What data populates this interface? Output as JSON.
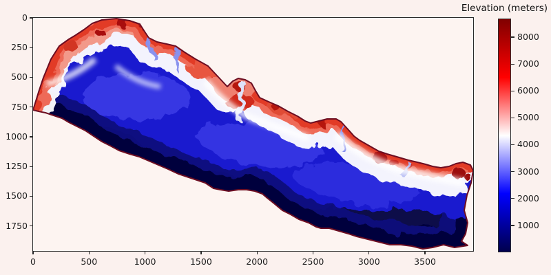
{
  "chart_data": {
    "type": "heatmap",
    "subject": "Digital elevation model (DEM) raster map of Nepal rendered with a seismic (blue-white-red) colormap",
    "x_axis": {
      "ticks": [
        0,
        500,
        1000,
        1500,
        2000,
        2500,
        3000,
        3500
      ],
      "range": [
        0,
        3930
      ]
    },
    "y_axis": {
      "ticks": [
        0,
        250,
        500,
        750,
        1000,
        1250,
        1500,
        1750
      ],
      "range": [
        0,
        1960
      ]
    },
    "colorbar": {
      "title": "Elevation (meters)",
      "unit": "meters",
      "vmin": 0,
      "vmax": 8690,
      "ticks": [
        1000,
        2000,
        3000,
        4000,
        5000,
        6000,
        7000,
        8000
      ],
      "colormap": "seismic",
      "gradient_stops": [
        {
          "value": 0,
          "color": "#00004d"
        },
        {
          "value": 2172,
          "color": "#0000ff"
        },
        {
          "value": 4345,
          "color": "#ffffff"
        },
        {
          "value": 6517,
          "color": "#ff0000"
        },
        {
          "value": 8690,
          "color": "#800000"
        }
      ]
    },
    "regions": [
      {
        "name": "high-himalaya-northern-belt",
        "approx_elevation_m": [
          5000,
          8690
        ],
        "rendered_color": "red to dark red"
      },
      {
        "name": "alpine-transition-fringe",
        "approx_elevation_m": [
          4000,
          5000
        ],
        "rendered_color": "white"
      },
      {
        "name": "mid-hills",
        "approx_elevation_m": [
          1500,
          3500
        ],
        "rendered_color": "blue"
      },
      {
        "name": "terai-southern-plains",
        "approx_elevation_m": [
          0,
          600
        ],
        "rendered_color": "dark navy"
      }
    ],
    "outline_color": "#6d0e22",
    "figure_background": "#fbf1ee",
    "plot_background": "#fdf4f1"
  }
}
